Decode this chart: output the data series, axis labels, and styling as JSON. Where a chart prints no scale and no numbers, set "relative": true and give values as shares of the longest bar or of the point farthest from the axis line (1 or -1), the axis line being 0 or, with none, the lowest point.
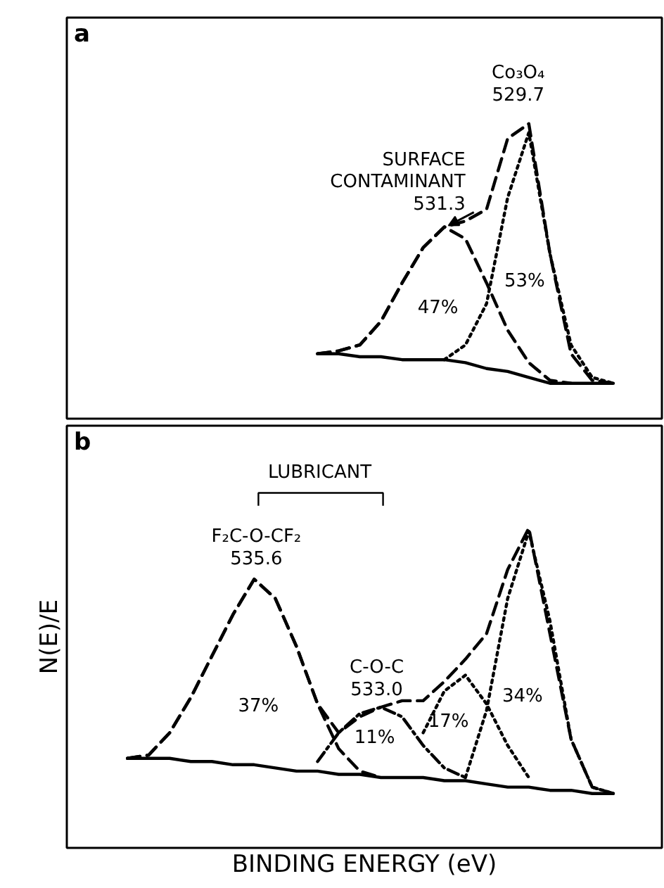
{
  "chart_data": [
    {
      "type": "line",
      "relative": true,
      "title": "a",
      "categories": [
        null,
        null,
        null,
        null,
        null,
        null,
        null,
        null,
        null,
        null,
        null,
        null,
        null,
        null,
        null,
        null,
        null,
        null,
        null,
        null,
        null,
        null,
        null,
        null,
        null,
        null,
        null
      ],
      "series": [
        {
          "color": "#000000",
          "line_style": "solid",
          "values": [
            null,
            null,
            null,
            null,
            null,
            null,
            null,
            null,
            null,
            null,
            null,
            0.22,
            0.22,
            0.21,
            0.21,
            0.2,
            0.2,
            0.2,
            0.19,
            0.17,
            0.16,
            0.14,
            0.12,
            0.12,
            0.12,
            0.12,
            null
          ]
        },
        {
          "color": "#000000",
          "line_style": "dashed",
          "values": [
            null,
            null,
            null,
            null,
            null,
            null,
            null,
            null,
            null,
            null,
            null,
            0.22,
            0.23,
            0.25,
            0.33,
            0.46,
            0.58,
            0.65,
            0.67,
            0.71,
            0.95,
            1.0,
            0.56,
            0.22,
            0.13,
            0.12,
            null
          ]
        },
        {
          "color": "#000000",
          "line_style": "dashed",
          "values": [
            null,
            null,
            null,
            null,
            null,
            null,
            null,
            null,
            null,
            null,
            null,
            0.22,
            0.23,
            0.25,
            0.33,
            0.46,
            0.58,
            0.65,
            0.61,
            0.46,
            0.3,
            0.19,
            0.13,
            0.12,
            null,
            null,
            null
          ]
        },
        {
          "color": "#000000",
          "line_style": "dotted",
          "values": [
            null,
            null,
            null,
            null,
            null,
            null,
            null,
            null,
            null,
            null,
            null,
            null,
            null,
            null,
            null,
            null,
            null,
            0.2,
            0.25,
            0.39,
            0.75,
            0.97,
            0.56,
            0.25,
            0.14,
            0.12,
            null
          ]
        }
      ],
      "annotations": [
        "Co₃O₄\n529.7",
        "SURFACE\nCONTAMINANT\n531.3",
        "47%",
        "53%"
      ]
    },
    {
      "type": "line",
      "relative": true,
      "title": "b",
      "xlabel": "BINDING ENERGY (eV)",
      "ylabel": "N(E)/E",
      "categories": [
        null,
        null,
        null,
        null,
        null,
        null,
        null,
        null,
        null,
        null,
        null,
        null,
        null,
        null,
        null,
        null,
        null,
        null,
        null,
        null,
        null,
        null,
        null,
        null,
        null,
        null,
        null
      ],
      "series": [
        {
          "color": "#000000",
          "line_style": "solid",
          "values": [
            null,
            null,
            0.28,
            0.28,
            0.28,
            0.27,
            0.27,
            0.26,
            0.26,
            0.25,
            0.24,
            0.24,
            0.23,
            0.23,
            0.22,
            0.22,
            0.22,
            0.21,
            0.21,
            0.2,
            0.19,
            0.19,
            0.18,
            0.18,
            0.17,
            0.17,
            null
          ]
        },
        {
          "color": "#000000",
          "line_style": "dashed",
          "values": [
            null,
            null,
            0.28,
            0.29,
            0.36,
            0.47,
            0.6,
            0.73,
            0.84,
            0.78,
            0.63,
            0.45,
            0.36,
            0.41,
            0.44,
            0.46,
            0.46,
            0.52,
            0.59,
            0.67,
            0.87,
            1.0,
            0.67,
            0.34,
            0.19,
            0.17,
            null
          ]
        },
        {
          "color": "#000000",
          "line_style": "dashed",
          "values": [
            null,
            null,
            0.28,
            0.29,
            0.36,
            0.47,
            0.6,
            0.73,
            0.84,
            0.78,
            0.63,
            0.45,
            0.31,
            0.24,
            0.22,
            null,
            null,
            null,
            null,
            null,
            null,
            null,
            null,
            null,
            null,
            null,
            null
          ]
        },
        {
          "color": "#000000",
          "line_style": "dashdot",
          "values": [
            null,
            null,
            null,
            null,
            null,
            null,
            null,
            null,
            null,
            null,
            null,
            0.27,
            0.36,
            0.42,
            0.44,
            0.41,
            0.32,
            0.25,
            0.22,
            null,
            null,
            null,
            null,
            null,
            null,
            null,
            null
          ]
        },
        {
          "color": "#000000",
          "line_style": "dotted",
          "values": [
            null,
            null,
            null,
            null,
            null,
            null,
            null,
            null,
            null,
            null,
            null,
            null,
            null,
            null,
            null,
            null,
            0.36,
            0.49,
            0.54,
            0.45,
            0.32,
            0.22,
            null,
            null,
            null,
            null,
            null
          ]
        },
        {
          "color": "#000000",
          "line_style": "dotted",
          "values": [
            null,
            null,
            null,
            null,
            null,
            null,
            null,
            null,
            null,
            null,
            null,
            null,
            null,
            null,
            null,
            null,
            null,
            null,
            0.22,
            0.43,
            0.78,
            0.99,
            0.71,
            0.34,
            0.19,
            0.17,
            null
          ]
        }
      ],
      "annotations": [
        "LUBRICANT",
        "F₂C-O-CF₂\n535.6",
        "C-O-C\n533.0",
        "37%",
        "11%",
        "17%",
        "34%"
      ]
    }
  ]
}
